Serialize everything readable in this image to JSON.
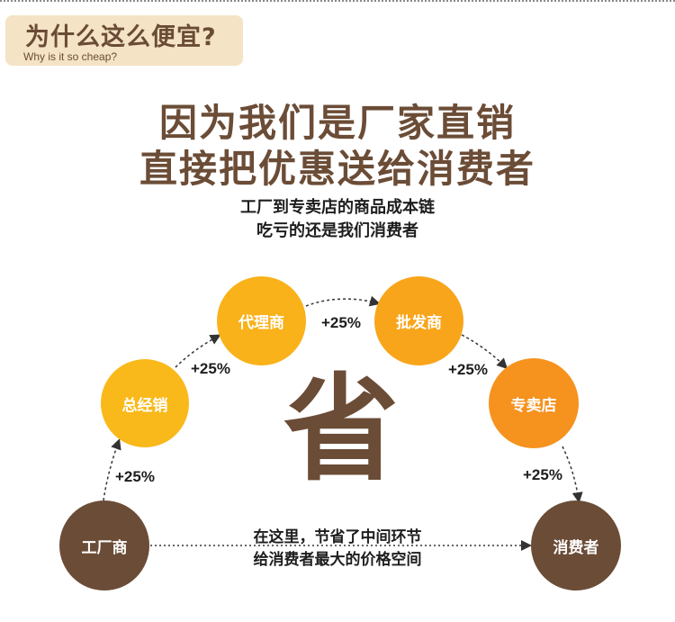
{
  "header": {
    "title": "为什么这么便宜?",
    "subtitle": "Why is it so cheap?"
  },
  "headline": {
    "line1": "因为我们是厂家直销",
    "line2": "直接把优惠送给消费者"
  },
  "subheadline": {
    "line1": "工厂到专卖店的商品成本链",
    "line2": "吃亏的还是我们消费者"
  },
  "chain": {
    "nodes": {
      "factory": "工厂商",
      "general_distributor": "总经销",
      "agent": "代理商",
      "wholesaler": "批发商",
      "store": "专卖店",
      "consumer": "消费者"
    },
    "markups": [
      "+25%",
      "+25%",
      "+25%",
      "+25%",
      "+25%"
    ]
  },
  "savings_char": "省",
  "note": {
    "line1": "在这里，节省了中间环节",
    "line2": "给消费者最大的价格空间"
  },
  "colors": {
    "brown": "#6b4c36",
    "header_bg": "#f4e3c4",
    "yellow": "#f9b91a",
    "orange": "#f6921e"
  }
}
